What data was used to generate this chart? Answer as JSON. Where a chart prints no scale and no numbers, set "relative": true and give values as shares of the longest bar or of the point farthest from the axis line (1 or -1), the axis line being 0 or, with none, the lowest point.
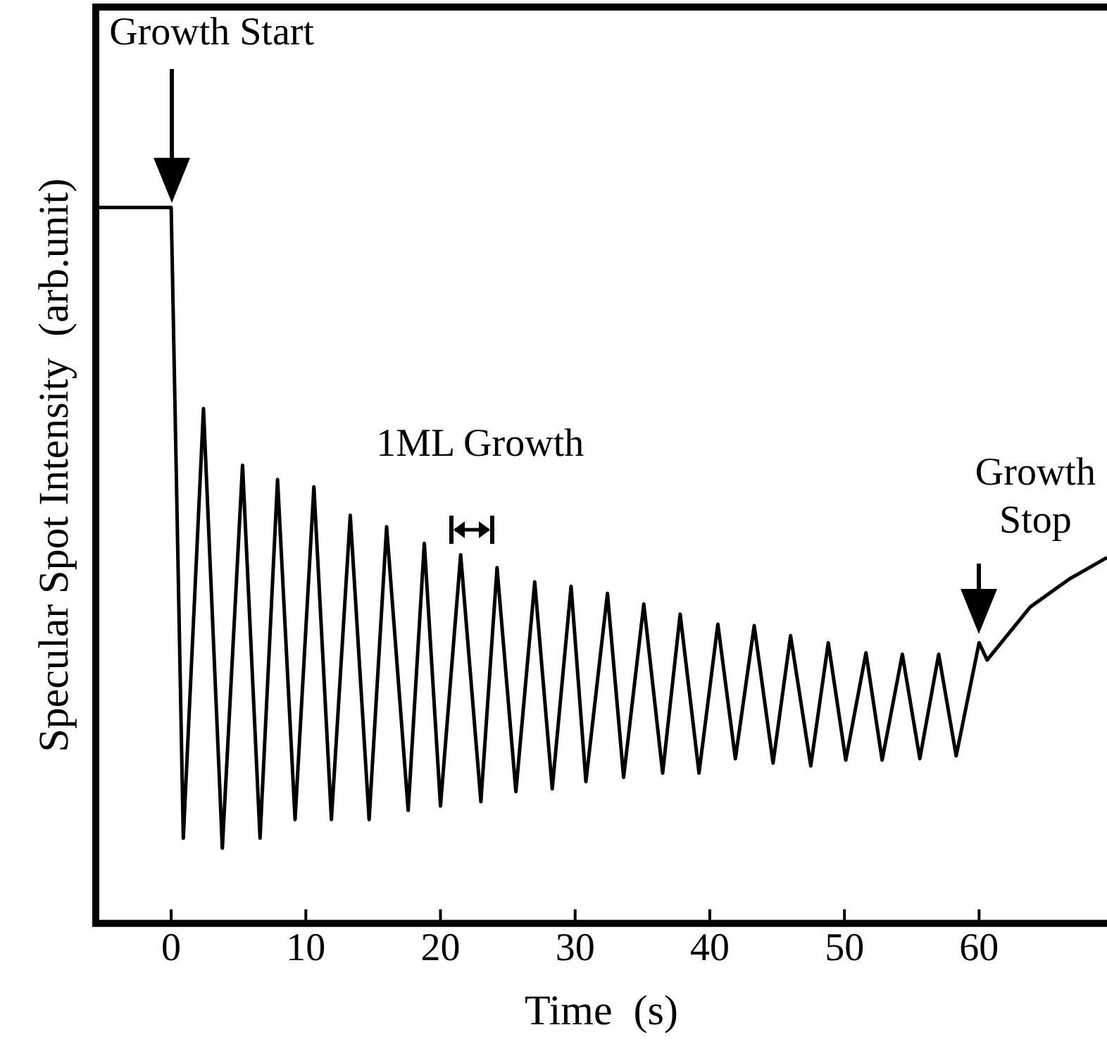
{
  "chart_data": {
    "type": "line",
    "xlabel": "Time  (s)",
    "ylabel": "Specular Spot Intensity  (arb.unit)",
    "relative": true,
    "xlim": [
      -5.6,
      69.5
    ],
    "xticks": [
      0,
      10,
      20,
      30,
      40,
      50,
      60
    ],
    "grid": false,
    "legend": false,
    "marker": "none",
    "line_style": "solid",
    "x": [
      -5.6,
      -3,
      0,
      0.9,
      2.4,
      3.8,
      5.3,
      6.6,
      7.9,
      9.2,
      10.6,
      11.9,
      13.3,
      14.7,
      16.0,
      17.6,
      18.8,
      20.0,
      21.5,
      23.0,
      24.2,
      25.6,
      27.0,
      28.3,
      29.7,
      30.8,
      32.4,
      33.6,
      35.1,
      36.5,
      37.8,
      39.2,
      40.6,
      41.9,
      43.3,
      44.7,
      46.0,
      47.5,
      48.8,
      50.1,
      51.6,
      52.8,
      54.3,
      55.6,
      57.0,
      58.3,
      60.0,
      60.6,
      63.8,
      66.7,
      69.5
    ],
    "series": [
      {
        "color": "#000000",
        "values": [
          1.0,
          1.0,
          1.0,
          0.119,
          0.719,
          0.105,
          0.64,
          0.119,
          0.62,
          0.145,
          0.61,
          0.145,
          0.57,
          0.145,
          0.554,
          0.158,
          0.531,
          0.164,
          0.515,
          0.17,
          0.497,
          0.184,
          0.477,
          0.188,
          0.471,
          0.198,
          0.461,
          0.204,
          0.446,
          0.21,
          0.432,
          0.21,
          0.418,
          0.23,
          0.416,
          0.224,
          0.402,
          0.22,
          0.392,
          0.228,
          0.378,
          0.228,
          0.376,
          0.23,
          0.376,
          0.234,
          0.392,
          0.368,
          0.442,
          0.481,
          0.511
        ]
      }
    ],
    "annotations": [
      "Growth Start",
      "1ML Growth",
      {
        "text": "Growth Stop",
        "x": 60,
        "y": 0.392
      }
    ]
  }
}
